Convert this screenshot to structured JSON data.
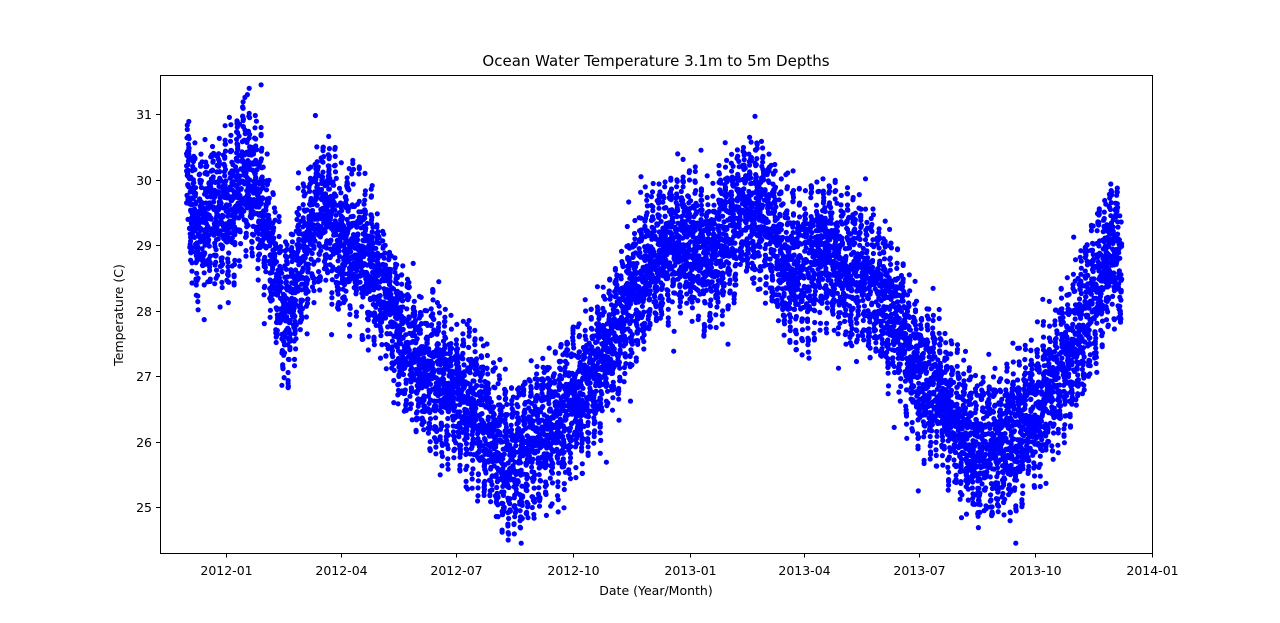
{
  "chart_data": {
    "type": "scatter",
    "title": "Ocean Water Temperature 3.1m to 5m Depths",
    "xlabel": "Date (Year/Month)",
    "ylabel": "Temperature (C)",
    "x_axis_type": "date",
    "xlim": [
      "2011-11-10",
      "2014-01-01"
    ],
    "ylim": [
      24.3,
      31.6
    ],
    "x_ticks": [
      "2012-01",
      "2012-04",
      "2012-07",
      "2012-10",
      "2013-01",
      "2013-04",
      "2013-07",
      "2013-10",
      "2014-01"
    ],
    "y_ticks": [
      25,
      26,
      27,
      28,
      29,
      30,
      31
    ],
    "grid": false,
    "marker_color": "#0000ff",
    "series": [
      {
        "points": [
          {
            "x": "2011-12-01",
            "y": 29.9
          },
          {
            "x": "2011-12-10",
            "y": 29.2
          },
          {
            "x": "2011-12-20",
            "y": 29.6
          },
          {
            "x": "2012-01-01",
            "y": 29.5
          },
          {
            "x": "2012-01-10",
            "y": 29.8
          },
          {
            "x": "2012-01-18",
            "y": 30.2
          },
          {
            "x": "2012-01-25",
            "y": 29.7
          },
          {
            "x": "2012-02-01",
            "y": 29.4
          },
          {
            "x": "2012-02-10",
            "y": 28.5
          },
          {
            "x": "2012-02-15",
            "y": 27.9
          },
          {
            "x": "2012-02-20",
            "y": 28.0
          },
          {
            "x": "2012-03-01",
            "y": 28.8
          },
          {
            "x": "2012-03-10",
            "y": 29.3
          },
          {
            "x": "2012-03-20",
            "y": 29.6
          },
          {
            "x": "2012-04-01",
            "y": 29.0
          },
          {
            "x": "2012-04-10",
            "y": 29.1
          },
          {
            "x": "2012-04-20",
            "y": 28.8
          },
          {
            "x": "2012-05-01",
            "y": 28.5
          },
          {
            "x": "2012-05-10",
            "y": 28.0
          },
          {
            "x": "2012-05-20",
            "y": 27.5
          },
          {
            "x": "2012-06-01",
            "y": 27.2
          },
          {
            "x": "2012-06-15",
            "y": 27.0
          },
          {
            "x": "2012-07-01",
            "y": 26.7
          },
          {
            "x": "2012-07-15",
            "y": 26.6
          },
          {
            "x": "2012-08-01",
            "y": 26.0
          },
          {
            "x": "2012-08-10",
            "y": 25.7
          },
          {
            "x": "2012-08-20",
            "y": 25.8
          },
          {
            "x": "2012-09-01",
            "y": 26.0
          },
          {
            "x": "2012-09-15",
            "y": 26.3
          },
          {
            "x": "2012-10-01",
            "y": 26.6
          },
          {
            "x": "2012-10-15",
            "y": 27.0
          },
          {
            "x": "2012-11-01",
            "y": 27.5
          },
          {
            "x": "2012-11-15",
            "y": 28.2
          },
          {
            "x": "2012-12-01",
            "y": 28.7
          },
          {
            "x": "2012-12-15",
            "y": 29.0
          },
          {
            "x": "2013-01-01",
            "y": 29.0
          },
          {
            "x": "2013-01-15",
            "y": 28.8
          },
          {
            "x": "2013-02-01",
            "y": 29.2
          },
          {
            "x": "2013-02-15",
            "y": 29.6
          },
          {
            "x": "2013-03-01",
            "y": 29.5
          },
          {
            "x": "2013-03-15",
            "y": 28.8
          },
          {
            "x": "2013-04-01",
            "y": 28.6
          },
          {
            "x": "2013-04-15",
            "y": 28.9
          },
          {
            "x": "2013-05-01",
            "y": 28.7
          },
          {
            "x": "2013-05-15",
            "y": 28.6
          },
          {
            "x": "2013-06-01",
            "y": 28.3
          },
          {
            "x": "2013-06-15",
            "y": 27.8
          },
          {
            "x": "2013-07-01",
            "y": 27.0
          },
          {
            "x": "2013-07-15",
            "y": 26.8
          },
          {
            "x": "2013-08-01",
            "y": 26.3
          },
          {
            "x": "2013-08-15",
            "y": 25.8
          },
          {
            "x": "2013-09-01",
            "y": 26.0
          },
          {
            "x": "2013-09-15",
            "y": 26.1
          },
          {
            "x": "2013-10-01",
            "y": 26.5
          },
          {
            "x": "2013-10-15",
            "y": 26.9
          },
          {
            "x": "2013-11-01",
            "y": 27.5
          },
          {
            "x": "2013-11-15",
            "y": 28.2
          },
          {
            "x": "2013-12-01",
            "y": 29.0
          },
          {
            "x": "2013-12-08",
            "y": 28.6
          }
        ]
      }
    ]
  }
}
